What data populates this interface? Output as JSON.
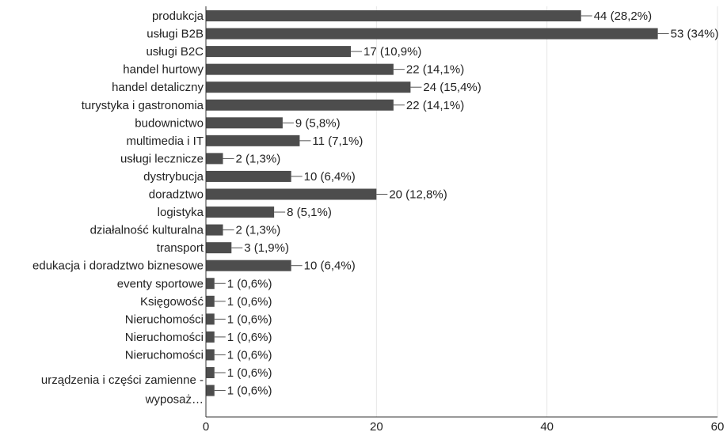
{
  "chart_data": {
    "type": "bar",
    "orientation": "horizontal",
    "categories": [
      "produkcja",
      "usługi B2B",
      "usługi B2C",
      "handel hurtowy",
      "handel detaliczny",
      "turystyka i gastronomia",
      "budownictwo",
      "multimedia i IT",
      "usługi lecznicze",
      "dystrybucja",
      "doradztwo",
      "logistyka",
      "działalność kulturalna",
      "transport",
      "edukacja i doradztwo biznesowe",
      "eventy sportowe",
      "Księgowość",
      "Nieruchomości",
      "Nieruchomości",
      "Nieruchomości",
      "",
      ""
    ],
    "values": [
      44,
      53,
      17,
      22,
      24,
      22,
      9,
      11,
      2,
      10,
      20,
      8,
      2,
      3,
      10,
      1,
      1,
      1,
      1,
      1,
      1,
      1
    ],
    "data_labels": [
      "44 (28,2%)",
      "53 (34%)",
      "17 (10,9%)",
      "22 (14,1%)",
      "24 (15,4%)",
      "22 (14,1%)",
      "9 (5,8%)",
      "11 (7,1%)",
      "2 (1,3%)",
      "10 (6,4%)",
      "20 (12,8%)",
      "8 (5,1%)",
      "2 (1,3%)",
      "3 (1,9%)",
      "10 (6,4%)",
      "1 (0,6%)",
      "1 (0,6%)",
      "1 (0,6%)",
      "1 (0,6%)",
      "1 (0,6%)",
      "1 (0,6%)",
      "1 (0,6%)"
    ],
    "wrapped_label": [
      "urządzenia i części zamienne -",
      "wyposaż…"
    ],
    "xlim": [
      0,
      60
    ],
    "x_ticks": [
      0,
      20,
      40,
      60
    ],
    "grid": true,
    "colors": {
      "bar": "#4d4d4d",
      "grid": "#e6e6e6",
      "axis": "#333333",
      "text": "#222222"
    }
  }
}
